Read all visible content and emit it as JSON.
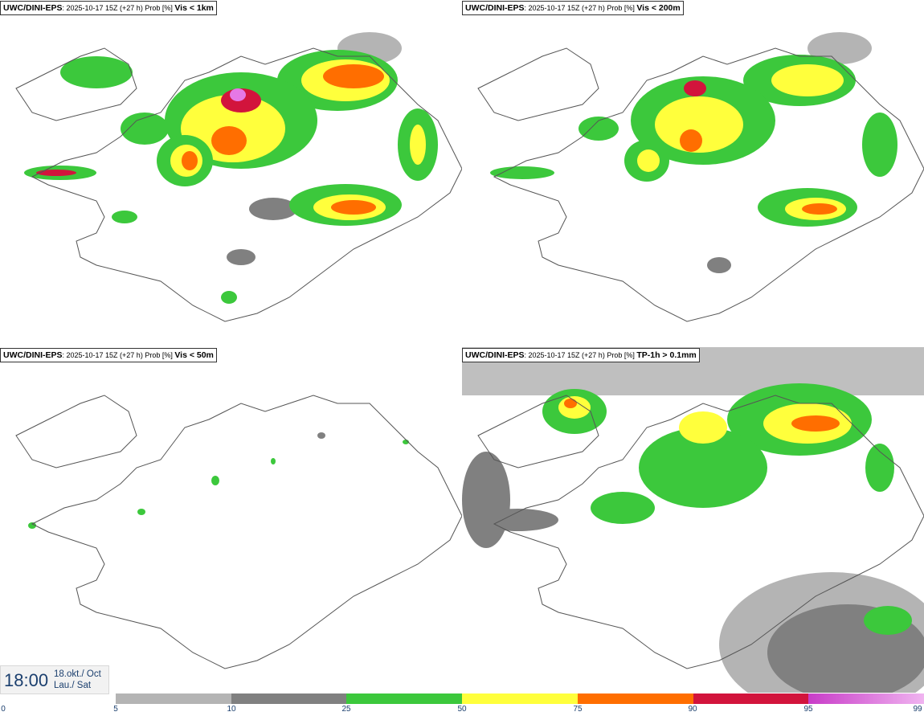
{
  "panels": [
    {
      "model": "UWC/DINI-EPS",
      "meta": ": 2025-10-17 15Z (+27 h) Prob [%] ",
      "variable": "Vis < 1km"
    },
    {
      "model": "UWC/DINI-EPS",
      "meta": ": 2025-10-17 15Z (+27 h) Prob [%] ",
      "variable": "Vis < 200m"
    },
    {
      "model": "UWC/DINI-EPS",
      "meta": ": 2025-10-17 15Z (+27 h) Prob [%] ",
      "variable": "Vis < 50m"
    },
    {
      "model": "UWC/DINI-EPS",
      "meta": ": 2025-10-17 15Z (+27 h) Prob [%] ",
      "variable": "TP-1h > 0.1mm"
    }
  ],
  "valid_time": {
    "time": "18:00",
    "date_line": "18.okt./ Oct",
    "day_line": "Lau./ Sat"
  },
  "colorbar": {
    "ticks": [
      "0",
      "5",
      "10",
      "25",
      "50",
      "75",
      "90",
      "95",
      "99"
    ],
    "colors": [
      "#b4b4b4",
      "#808080",
      "#3cc83c",
      "#ffff3c",
      "#ff6e00",
      "#d2143c",
      "#c83cc8"
    ],
    "gradient_last_to": "#f0b4f0"
  },
  "legend_colors": {
    "p5": "#b4b4b4",
    "p10": "#808080",
    "p25": "#3cc83c",
    "p50": "#ffff3c",
    "p75": "#ff6e00",
    "p90": "#d2143c",
    "p95": "#c83cc8"
  }
}
